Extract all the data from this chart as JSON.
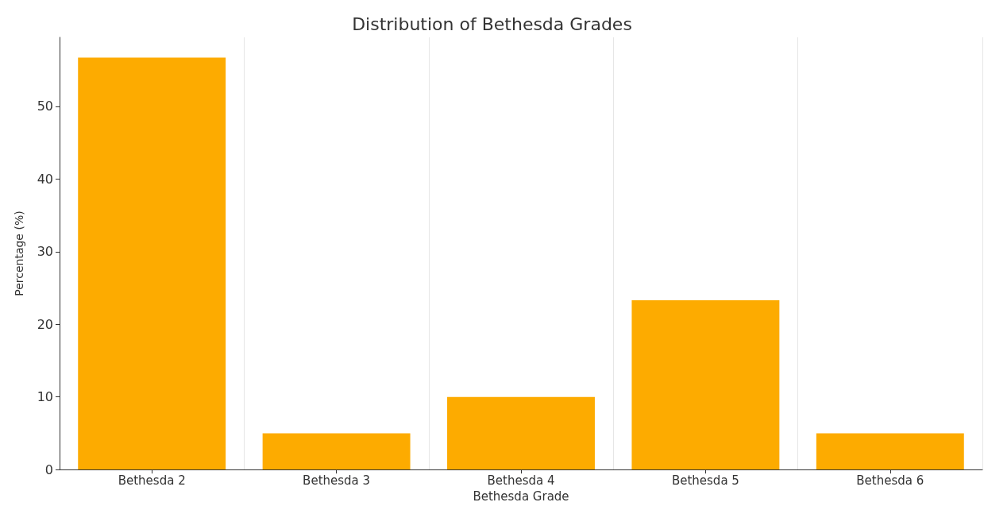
{
  "chart_data": {
    "type": "bar",
    "title": "Distribution of Bethesda Grades",
    "xlabel": "Bethesda Grade",
    "ylabel": "Percentage (%)",
    "categories": [
      "Bethesda 2",
      "Bethesda 3",
      "Bethesda 4",
      "Bethesda 5",
      "Bethesda 6"
    ],
    "values": [
      56.7,
      5,
      10,
      23.3,
      5
    ],
    "color": "#fdab00",
    "ylim": [
      0,
      59.5
    ],
    "yticks": [
      0,
      10,
      20,
      30,
      40,
      50
    ],
    "grid": "x"
  }
}
